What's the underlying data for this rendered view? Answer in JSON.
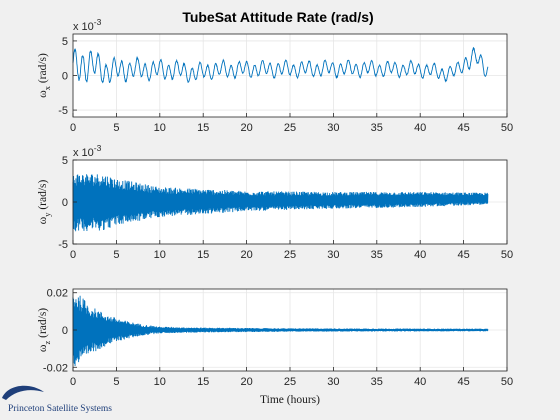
{
  "figure": {
    "title": "TubeSat Attitude Rate (rad/s)",
    "xlabel": "Time (hours)",
    "logo_text": "Princeton Satellite Systems",
    "colors": {
      "background": "#f0f0f0",
      "axes_bg": "#ffffff",
      "line": "#0072bd",
      "grid": "#e6e6e6",
      "axis": "#262626",
      "logo": "#1f3f7a"
    }
  },
  "chart_data": [
    {
      "type": "line",
      "ylabel_main": "ω",
      "ylabel_sub": "x",
      "ylabel_unit": " (rad/s)",
      "exponent_base": "x 10",
      "exponent_power": "-3",
      "xlim": [
        0,
        50
      ],
      "ylim": [
        -6,
        6
      ],
      "grid": true,
      "x_ticks": [
        "0",
        "5",
        "10",
        "15",
        "20",
        "25",
        "30",
        "35",
        "40",
        "45",
        "50"
      ],
      "y_ticks": [
        "-5",
        "0",
        "5"
      ],
      "y_tick_values": [
        -5,
        0,
        5
      ],
      "x_end": 47.8,
      "envelope": [
        [
          0.0,
          4.6
        ],
        [
          1.0,
          5.6
        ],
        [
          2.0,
          4.8
        ],
        [
          3.0,
          4.1
        ],
        [
          4.5,
          3.6
        ],
        [
          6.0,
          3.3
        ],
        [
          8.0,
          3.0
        ],
        [
          12.0,
          2.7
        ],
        [
          20.0,
          2.4
        ],
        [
          30.0,
          2.3
        ],
        [
          40.0,
          2.2
        ],
        [
          44.5,
          2.1
        ],
        [
          45.5,
          3.0
        ],
        [
          47.8,
          2.6
        ]
      ],
      "center": [
        [
          0.0,
          1.0
        ],
        [
          1.5,
          1.8
        ],
        [
          4.0,
          0.6
        ],
        [
          6.0,
          0.9
        ],
        [
          9.0,
          0.8
        ],
        [
          12.0,
          0.8
        ],
        [
          14.0,
          0.3
        ],
        [
          16.0,
          0.8
        ],
        [
          20.0,
          0.9
        ],
        [
          30.0,
          1.0
        ],
        [
          40.0,
          0.9
        ],
        [
          43.0,
          0.3
        ],
        [
          44.0,
          0.5
        ],
        [
          45.0,
          1.8
        ],
        [
          46.5,
          2.6
        ],
        [
          47.8,
          0.9
        ]
      ],
      "dominant_period_hours": 0.9
    },
    {
      "type": "line",
      "ylabel_main": "ω",
      "ylabel_sub": "y",
      "ylabel_unit": " (rad/s)",
      "exponent_base": "x 10",
      "exponent_power": "-3",
      "xlim": [
        0,
        50
      ],
      "ylim": [
        -5,
        5
      ],
      "grid": true,
      "x_ticks": [
        "0",
        "5",
        "10",
        "15",
        "20",
        "25",
        "30",
        "35",
        "40",
        "45",
        "50"
      ],
      "y_ticks": [
        "-5",
        "0",
        "5"
      ],
      "y_tick_values": [
        -5,
        0,
        5
      ],
      "x_end": 47.8,
      "envelope": [
        [
          0.0,
          3.5
        ],
        [
          3.5,
          3.4
        ],
        [
          5.0,
          2.8
        ],
        [
          10.0,
          1.8
        ],
        [
          15.0,
          1.5
        ],
        [
          20.0,
          1.2
        ],
        [
          30.0,
          1.0
        ],
        [
          40.0,
          0.9
        ],
        [
          47.8,
          0.7
        ]
      ],
      "center": [
        [
          0.0,
          0.0
        ],
        [
          10.0,
          0.0
        ],
        [
          20.0,
          0.1
        ],
        [
          30.0,
          0.2
        ],
        [
          40.0,
          0.3
        ],
        [
          47.8,
          0.4
        ]
      ],
      "dominant_period_hours": 0.05
    },
    {
      "type": "line",
      "ylabel_main": "ω",
      "ylabel_sub": "z",
      "ylabel_unit": " (rad/s)",
      "exponent_base": "",
      "exponent_power": "",
      "xlim": [
        0,
        50
      ],
      "ylim": [
        -0.022,
        0.022
      ],
      "grid": true,
      "x_ticks": [
        "0",
        "5",
        "10",
        "15",
        "20",
        "25",
        "30",
        "35",
        "40",
        "45",
        "50"
      ],
      "y_ticks": [
        "-0.02",
        "0",
        "0.02"
      ],
      "y_tick_values": [
        -0.02,
        0,
        0.02
      ],
      "x_end": 47.8,
      "envelope": [
        [
          0.0,
          0.021
        ],
        [
          1.0,
          0.018
        ],
        [
          2.0,
          0.013
        ],
        [
          4.0,
          0.008
        ],
        [
          6.0,
          0.005
        ],
        [
          8.0,
          0.003
        ],
        [
          10.0,
          0.0018
        ],
        [
          15.0,
          0.0013
        ],
        [
          25.0,
          0.0009
        ],
        [
          35.0,
          0.0008
        ],
        [
          47.8,
          0.0007
        ]
      ],
      "center": [
        [
          0.0,
          0.0
        ],
        [
          47.8,
          0.0
        ]
      ],
      "dominant_period_hours": 0.05
    }
  ]
}
